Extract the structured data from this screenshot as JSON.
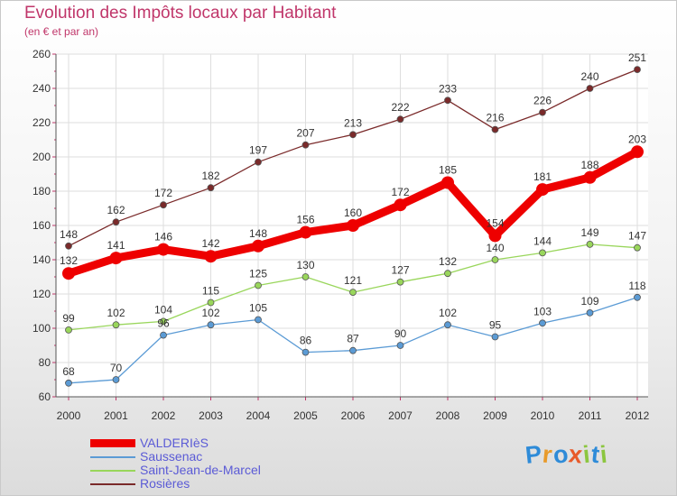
{
  "title": "Evolution des Impôts locaux par Habitant",
  "subtitle": "(en € et par an)",
  "logo_parts": [
    "P",
    "r",
    "o",
    "x",
    "i",
    "t",
    "i"
  ],
  "logo_colors": [
    "#2e8bd8",
    "#e89a2a",
    "#2e8bd8",
    "#e85a2a",
    "#8cc63f",
    "#2e8bd8",
    "#8cc63f"
  ],
  "chart_data": {
    "type": "line",
    "title": "Evolution des Impôts locaux par Habitant",
    "subtitle": "(en € et par an)",
    "x": [
      "2000",
      "2001",
      "2002",
      "2003",
      "2004",
      "2005",
      "2006",
      "2007",
      "2008",
      "2009",
      "2010",
      "2011",
      "2012"
    ],
    "ylim": [
      60,
      260
    ],
    "yticks": [
      "60",
      "80",
      "100",
      "120",
      "140",
      "160",
      "180",
      "200",
      "220",
      "240",
      "260"
    ],
    "grid": true,
    "legend_position": "bottom-left",
    "series": [
      {
        "name": "VALDERIèS",
        "color": "#ee0000",
        "values": [
          132,
          141,
          146,
          142,
          148,
          156,
          160,
          172,
          185,
          154,
          181,
          188,
          203
        ],
        "labels": [
          "132",
          "141",
          "146",
          "142",
          "148",
          "156",
          "160",
          "172",
          "185",
          "154",
          "181",
          "188",
          "203"
        ]
      },
      {
        "name": "Saussenac",
        "color": "#5b9bd5",
        "values": [
          68,
          70,
          96,
          102,
          105,
          86,
          87,
          90,
          102,
          95,
          103,
          109,
          118
        ],
        "labels": [
          "68",
          "70",
          "96",
          "102",
          "105",
          "86",
          "87",
          "90",
          "102",
          "95",
          "103",
          "109",
          "118"
        ]
      },
      {
        "name": "Saint-Jean-de-Marcel",
        "color": "#99d65b",
        "values": [
          99,
          102,
          104,
          115,
          125,
          130,
          121,
          127,
          132,
          140,
          144,
          149,
          147
        ],
        "labels": [
          "99",
          "102",
          "104",
          "115",
          "125",
          "130",
          "121",
          "127",
          "132",
          "140",
          "144",
          "149",
          "147"
        ]
      },
      {
        "name": "Rosières",
        "color": "#7a2a2a",
        "values": [
          148,
          162,
          172,
          182,
          197,
          207,
          213,
          222,
          233,
          216,
          226,
          240,
          251
        ],
        "labels": [
          "148",
          "162",
          "172",
          "182",
          "197",
          "207",
          "213",
          "222",
          "233",
          "216",
          "226",
          "240",
          "251"
        ]
      }
    ]
  }
}
